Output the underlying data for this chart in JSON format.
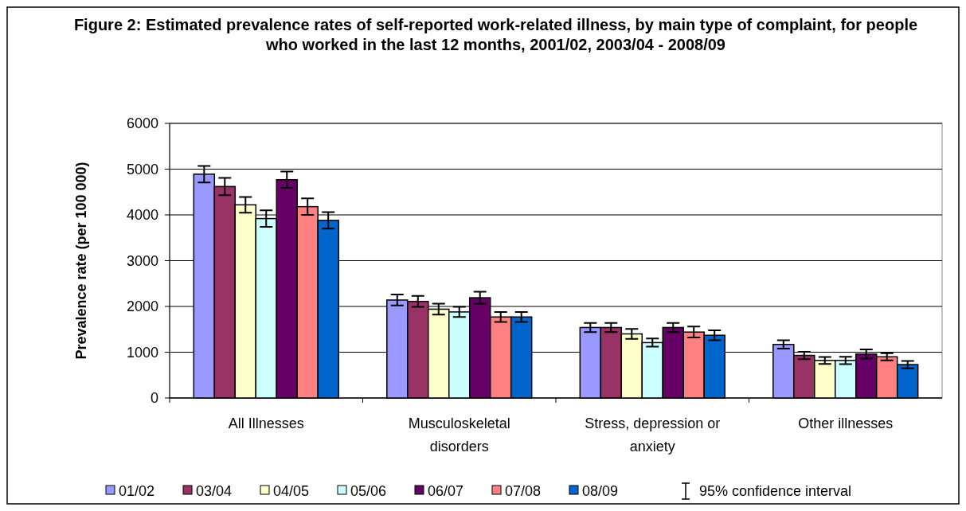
{
  "chart_data": {
    "type": "bar",
    "title": "Figure 2: Estimated prevalence rates of self-reported work-related illness, by main type of complaint, for people who worked in the last 12 months, 2001/02, 2003/04 - 2008/09",
    "ylabel": "Prevalence rate (per 100 000)",
    "categories": [
      "All Illnesses",
      "Musculoskeletal disorders",
      "Stress, depression or anxiety",
      "Other illnesses"
    ],
    "ylim": [
      0,
      6000
    ],
    "yticks": [
      0,
      1000,
      2000,
      3000,
      4000,
      5000,
      6000
    ],
    "grid": "y",
    "legend": "bottom",
    "annotations": [
      "95% confidence interval"
    ],
    "series": [
      {
        "name": "01/02",
        "color": "#9999ff",
        "values": [
          4890,
          2140,
          1540,
          1170
        ],
        "errors": [
          180,
          120,
          100,
          90
        ]
      },
      {
        "name": "03/04",
        "color": "#993366",
        "values": [
          4620,
          2110,
          1540,
          930
        ],
        "errors": [
          190,
          120,
          100,
          80
        ]
      },
      {
        "name": "04/05",
        "color": "#ffffcc",
        "values": [
          4220,
          1940,
          1400,
          820
        ],
        "errors": [
          170,
          120,
          110,
          75
        ]
      },
      {
        "name": "05/06",
        "color": "#ccffff",
        "values": [
          3920,
          1880,
          1210,
          820
        ],
        "errors": [
          180,
          110,
          90,
          80
        ]
      },
      {
        "name": "06/07",
        "color": "#660066",
        "values": [
          4770,
          2190,
          1540,
          960
        ],
        "errors": [
          180,
          130,
          100,
          100
        ]
      },
      {
        "name": "07/08",
        "color": "#ff8080",
        "values": [
          4180,
          1770,
          1440,
          900
        ],
        "errors": [
          180,
          110,
          120,
          80
        ]
      },
      {
        "name": "08/09",
        "color": "#0066cc",
        "values": [
          3880,
          1770,
          1370,
          730
        ],
        "errors": [
          180,
          110,
          110,
          80
        ]
      }
    ]
  }
}
